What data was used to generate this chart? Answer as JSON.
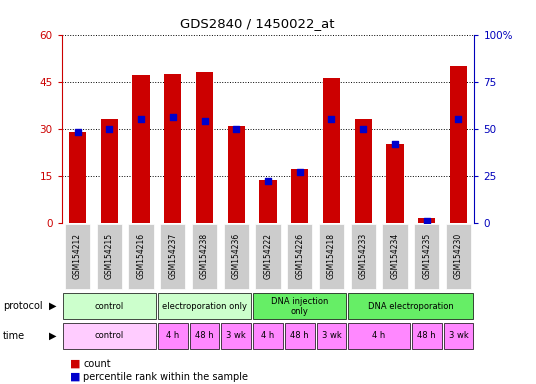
{
  "title": "GDS2840 / 1450022_at",
  "samples": [
    "GSM154212",
    "GSM154215",
    "GSM154216",
    "GSM154237",
    "GSM154238",
    "GSM154236",
    "GSM154222",
    "GSM154226",
    "GSM154218",
    "GSM154233",
    "GSM154234",
    "GSM154235",
    "GSM154230"
  ],
  "count_values": [
    29,
    33,
    47,
    47.5,
    48,
    31,
    13.5,
    17,
    46,
    33,
    25,
    1.5,
    50
  ],
  "percentile_values": [
    48,
    50,
    55,
    56,
    54,
    50,
    22,
    27,
    55,
    50,
    42,
    1,
    55
  ],
  "proto_groups": [
    {
      "label": "control",
      "start": 0,
      "end": 3,
      "color": "#ccffcc"
    },
    {
      "label": "electroporation only",
      "start": 3,
      "end": 6,
      "color": "#ccffcc"
    },
    {
      "label": "DNA injection\nonly",
      "start": 6,
      "end": 9,
      "color": "#66ee66"
    },
    {
      "label": "DNA electroporation",
      "start": 9,
      "end": 13,
      "color": "#66ee66"
    }
  ],
  "time_groups": [
    {
      "label": "control",
      "start": 0,
      "end": 3,
      "color": "#ffccff"
    },
    {
      "label": "4 h",
      "start": 3,
      "end": 4,
      "color": "#ff88ff"
    },
    {
      "label": "48 h",
      "start": 4,
      "end": 5,
      "color": "#ff88ff"
    },
    {
      "label": "3 wk",
      "start": 5,
      "end": 6,
      "color": "#ff88ff"
    },
    {
      "label": "4 h",
      "start": 6,
      "end": 7,
      "color": "#ff88ff"
    },
    {
      "label": "48 h",
      "start": 7,
      "end": 8,
      "color": "#ff88ff"
    },
    {
      "label": "3 wk",
      "start": 8,
      "end": 9,
      "color": "#ff88ff"
    },
    {
      "label": "4 h",
      "start": 9,
      "end": 11,
      "color": "#ff88ff"
    },
    {
      "label": "48 h",
      "start": 11,
      "end": 12,
      "color": "#ff88ff"
    },
    {
      "label": "3 wk",
      "start": 12,
      "end": 13,
      "color": "#ff88ff"
    }
  ],
  "ylim_left": [
    0,
    60
  ],
  "ylim_right": [
    0,
    100
  ],
  "yticks_left": [
    0,
    15,
    30,
    45,
    60
  ],
  "yticks_right": [
    0,
    25,
    50,
    75,
    100
  ],
  "bar_color": "#cc0000",
  "dot_color": "#0000cc",
  "left_axis_color": "#cc0000",
  "right_axis_color": "#0000bb",
  "sample_bg_color": "#cccccc"
}
